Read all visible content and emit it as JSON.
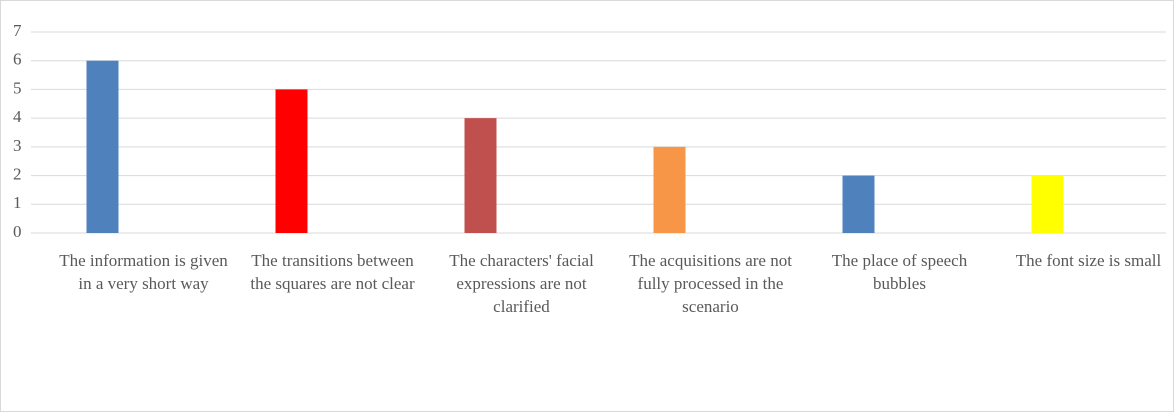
{
  "chart_data": {
    "type": "bar",
    "categories": [
      "The information is given in a very short way",
      "The transitions between the squares are not clear",
      "The characters' facial expressions are not clarified",
      "The acquisitions are not fully processed in the scenario",
      "The place of speech bubbles",
      "The font size is small"
    ],
    "values": [
      6,
      5,
      4,
      3,
      2,
      2
    ],
    "colors": [
      "#4f81bd",
      "#ff0000",
      "#c0504d",
      "#f79646",
      "#4f81bd",
      "#ffff00"
    ],
    "ylim": [
      0,
      7
    ],
    "yticks": [
      0,
      1,
      2,
      3,
      4,
      5,
      6,
      7
    ],
    "grid": true
  }
}
